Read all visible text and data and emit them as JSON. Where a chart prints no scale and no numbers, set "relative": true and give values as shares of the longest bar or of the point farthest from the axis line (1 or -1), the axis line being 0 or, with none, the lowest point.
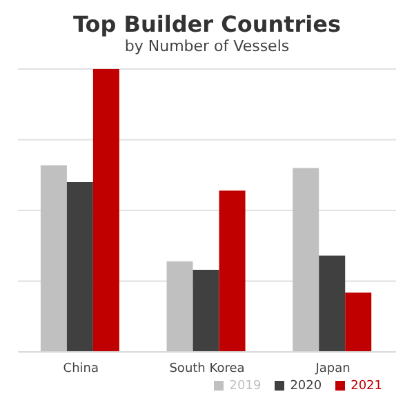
{
  "chart_data": {
    "type": "bar",
    "title": "Top Builder Countries",
    "subtitle": "by Number of Vessels",
    "relative": true,
    "categories": [
      "China",
      "South Korea",
      "Japan"
    ],
    "series": [
      {
        "name": "2019",
        "color": "#c0c0c0",
        "values": [
          0.66,
          0.32,
          0.65
        ]
      },
      {
        "name": "2020",
        "color": "#404040",
        "values": [
          0.6,
          0.29,
          0.34
        ]
      },
      {
        "name": "2021",
        "color": "#c00000",
        "values": [
          1,
          0.57,
          0.21
        ]
      }
    ],
    "grid": "y",
    "legend": "bottom right"
  }
}
